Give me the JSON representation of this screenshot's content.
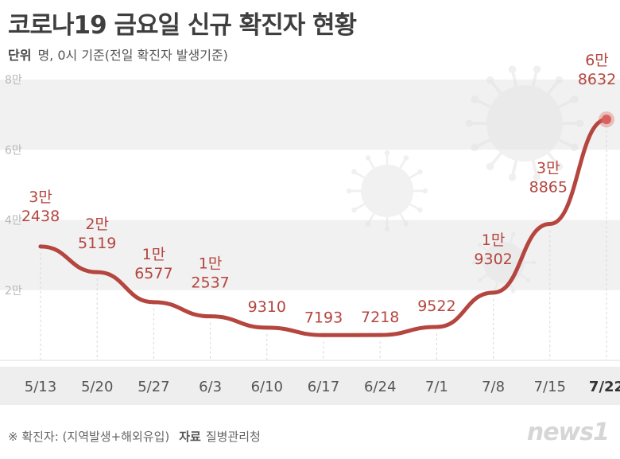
{
  "title": "코로나19 금요일 신규 확진자 현황",
  "unit": {
    "label": "단위",
    "text": "명, 0시 기준(전일 확진자 발생기준)"
  },
  "footer": {
    "note": "※ 확진자: (지역발생+해외유입)",
    "source_label": "자료",
    "source": "질병관리청"
  },
  "logo": "news1",
  "chart_data": {
    "type": "line",
    "title": "코로나19 금요일 신규 확진자 현황",
    "xlabel": "",
    "ylabel": "",
    "x": [
      "5/13",
      "5/20",
      "5/27",
      "6/3",
      "6/10",
      "6/17",
      "6/24",
      "7/1",
      "7/8",
      "7/15",
      "7/22"
    ],
    "values": [
      32438,
      25119,
      16577,
      12537,
      9310,
      7193,
      7218,
      9522,
      19302,
      38865,
      68632
    ],
    "value_labels": [
      [
        "3만",
        "2438"
      ],
      [
        "2만",
        "5119"
      ],
      [
        "1만",
        "6577"
      ],
      [
        "1만",
        "2537"
      ],
      [
        "",
        "9310"
      ],
      [
        "",
        "7193"
      ],
      [
        "",
        "7218"
      ],
      [
        "",
        "9522"
      ],
      [
        "1만",
        "9302"
      ],
      [
        "3만",
        "8865"
      ],
      [
        "6만",
        "8632"
      ]
    ],
    "yticks": [
      "8만",
      "6만",
      "4만",
      "2만"
    ],
    "ytick_values": [
      80000,
      60000,
      40000,
      20000
    ],
    "ylim": [
      0,
      80000
    ],
    "highlight_index": 10,
    "grid": true,
    "colors": {
      "line": "#b5453f",
      "band": "#f1f1f1",
      "marker": "#d9625e"
    }
  }
}
